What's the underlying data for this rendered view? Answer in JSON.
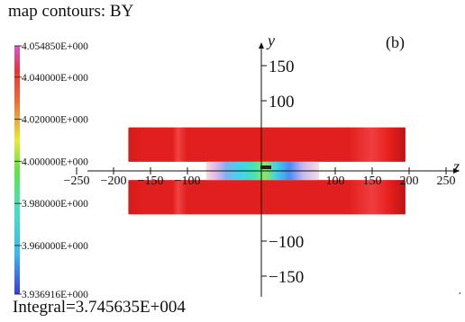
{
  "title": "map contours: BY",
  "panel_label": "(b)",
  "integral_text": "Integral=3.745635E+004",
  "colorbar": {
    "tick_labels": [
      "4.054850E+000",
      "4.040000E+000",
      "4.020000E+000",
      "4.000000E+000",
      "3.980000E+000",
      "3.960000E+000",
      "3.936916E+000"
    ],
    "tick_values": [
      4.05485,
      4.04,
      4.02,
      4.0,
      3.98,
      3.96,
      3.936916
    ],
    "min": 3.936916,
    "max": 4.05485,
    "colors": [
      "#3b3bd9",
      "#3fd9e3",
      "#55e24a",
      "#e8ea3a",
      "#ef8a3a",
      "#e4373a",
      "#d955d0"
    ]
  },
  "chart_data": {
    "type": "heatmap",
    "title": "map contours: BY",
    "quantity": "BY",
    "xlabel": "z",
    "ylabel": "y",
    "x_ticks": [
      -250,
      -200,
      -150,
      -100,
      100,
      150,
      200,
      250
    ],
    "x_tick_labels": [
      "−250",
      "−200",
      "−150",
      "−100",
      "100",
      "150",
      "200",
      "250"
    ],
    "y_ticks": [
      150,
      100,
      -100,
      -150
    ],
    "y_tick_labels": [
      "150",
      "100",
      "−100",
      "−150"
    ],
    "xlim": [
      -270,
      270
    ],
    "ylim": [
      -185,
      185
    ],
    "color_range": [
      3.936916,
      4.05485
    ],
    "regions": [
      {
        "name": "upper-block",
        "z": [
          -180,
          195
        ],
        "y": [
          13,
          62
        ],
        "value": 4.045,
        "color": "#e21f1f"
      },
      {
        "name": "lower-block",
        "z": [
          -180,
          195
        ],
        "y": [
          -62,
          -13
        ],
        "value": 4.045,
        "color": "#e21f1f"
      },
      {
        "name": "gap-field",
        "z": [
          -75,
          78
        ],
        "y": [
          -13,
          13
        ],
        "value_range": [
          3.94,
          4.05
        ]
      }
    ],
    "integral": 37456.35,
    "annotation": "(b)"
  }
}
